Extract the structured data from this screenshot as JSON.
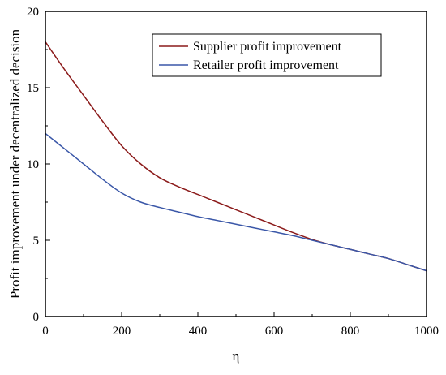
{
  "chart_data": {
    "type": "line",
    "title": "",
    "xlabel": "η",
    "ylabel": "Profit improvement under decentralized decision",
    "xlim": [
      0,
      1000
    ],
    "ylim": [
      0,
      20
    ],
    "x_ticks": [
      "0",
      "200",
      "400",
      "600",
      "800",
      "1000"
    ],
    "y_ticks": [
      "0",
      "5",
      "10",
      "15",
      "20"
    ],
    "grid": false,
    "legend_position": "top-right",
    "series": [
      {
        "name": "Supplier profit improvement",
        "color": "#8b1a1a",
        "x": [
          0,
          50,
          100,
          150,
          200,
          250,
          300,
          350,
          400,
          450,
          500,
          550,
          600,
          650,
          700,
          750,
          800,
          850,
          900,
          950,
          1000
        ],
        "y": [
          18.0,
          16.2,
          14.5,
          12.8,
          11.2,
          10.0,
          9.1,
          8.5,
          8.0,
          7.5,
          7.0,
          6.5,
          6.0,
          5.5,
          5.05,
          4.7,
          4.4,
          4.1,
          3.8,
          3.4,
          3.0
        ]
      },
      {
        "name": "Retailer profit improvement",
        "color": "#3a57a8",
        "x": [
          0,
          50,
          100,
          150,
          200,
          250,
          300,
          350,
          400,
          450,
          500,
          550,
          600,
          650,
          700,
          750,
          800,
          850,
          900,
          950,
          1000
        ],
        "y": [
          12.0,
          11.0,
          10.0,
          9.0,
          8.1,
          7.5,
          7.15,
          6.85,
          6.55,
          6.3,
          6.05,
          5.8,
          5.55,
          5.3,
          5.0,
          4.7,
          4.4,
          4.1,
          3.8,
          3.4,
          3.0
        ]
      }
    ]
  }
}
